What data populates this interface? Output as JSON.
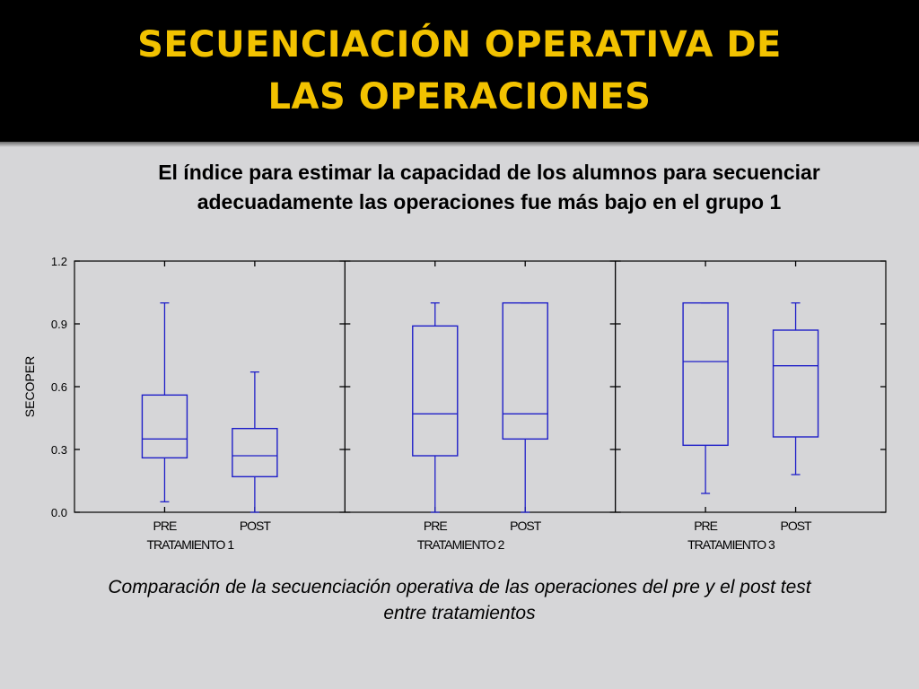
{
  "slide": {
    "title_line1": "SECUENCIACIÓN OPERATIVA DE",
    "title_line2": "LAS OPERACIONES",
    "subtitle_line1": "El índice para estimar la capacidad de los alumnos para secuenciar",
    "subtitle_line2": "adecuadamente las operaciones fue más bajo en el grupo 1",
    "caption_line1": "Comparación de la secuenciación operativa de las operaciones del pre y el post test",
    "caption_line2": "entre tratamientos"
  },
  "colors": {
    "title": "#f2c200",
    "title_background": "#000000",
    "box": "#1f1fc8",
    "background": "#d6d6d8"
  },
  "chart_data": {
    "type": "boxplot",
    "ylabel": "SECOPER",
    "ylim": [
      0,
      1.2
    ],
    "yticks": [
      "0.0",
      "0.3",
      "0.6",
      "0.9",
      "1.2"
    ],
    "panels": [
      {
        "label": "TRATAMIENTO 1",
        "boxes": [
          {
            "label": "PRE",
            "min": 0.05,
            "q1": 0.26,
            "median": 0.35,
            "q3": 0.56,
            "max": 1.0
          },
          {
            "label": "POST",
            "min": 0.0,
            "q1": 0.17,
            "median": 0.27,
            "q3": 0.4,
            "max": 0.67
          }
        ]
      },
      {
        "label": "TRATAMIENTO 2",
        "boxes": [
          {
            "label": "PRE",
            "min": 0.0,
            "q1": 0.27,
            "median": 0.47,
            "q3": 0.89,
            "max": 1.0
          },
          {
            "label": "POST",
            "min": 0.0,
            "q1": 0.35,
            "median": 0.47,
            "q3": 1.0,
            "max": 1.0
          }
        ]
      },
      {
        "label": "TRATAMIENTO 3",
        "boxes": [
          {
            "label": "PRE",
            "min": 0.09,
            "q1": 0.32,
            "median": 0.72,
            "q3": 1.0,
            "max": 1.0
          },
          {
            "label": "POST",
            "min": 0.18,
            "q1": 0.36,
            "median": 0.7,
            "q3": 0.87,
            "max": 1.0
          }
        ]
      }
    ]
  }
}
